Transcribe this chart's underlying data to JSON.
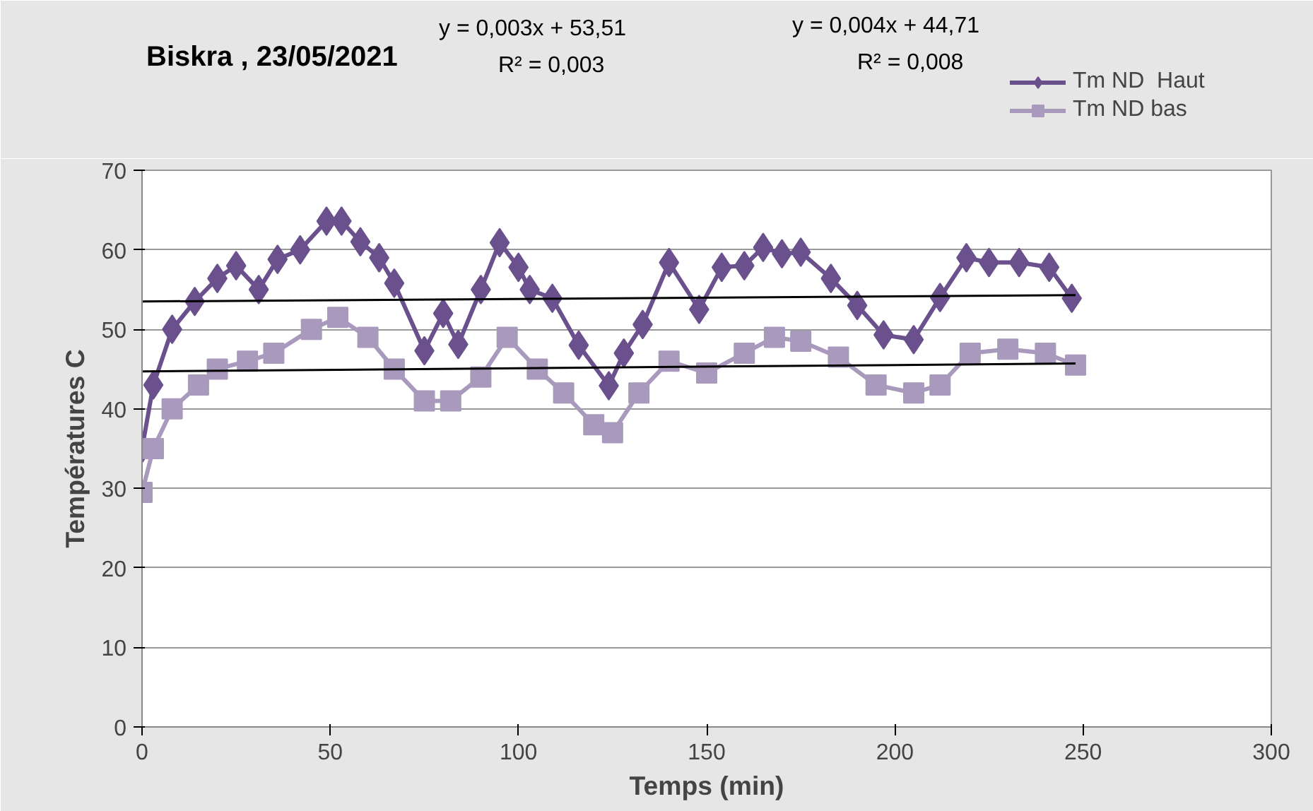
{
  "chart_data": {
    "type": "line",
    "title": "Biskra , 23/05/2021",
    "xlabel": "Temps (min)",
    "ylabel": "Températures C",
    "annotations": [
      "y = 0,003x + 53,51",
      "R² = 0,003",
      "y = 0,004x + 44,71",
      "R² = 0,008"
    ],
    "series": [
      {
        "name": "Tm ND  Haut",
        "color": "#6a508c",
        "marker": "diamond",
        "x": [
          0,
          3,
          8,
          14,
          20,
          25,
          31,
          36,
          42,
          49,
          53,
          58,
          63,
          67,
          75,
          80,
          84,
          90,
          95,
          100,
          103,
          109,
          116,
          124,
          128,
          133,
          140,
          148,
          154,
          160,
          165,
          170,
          175,
          183,
          190,
          197,
          205,
          212,
          219,
          225,
          233,
          241,
          247
        ],
        "values": [
          35,
          43,
          50,
          53.5,
          56.4,
          58,
          55,
          58.8,
          60,
          63.6,
          63.6,
          61,
          59,
          55.8,
          47.3,
          52,
          48.1,
          55,
          60.9,
          57.8,
          55,
          53.9,
          48,
          42.9,
          47,
          50.6,
          58.4,
          52.5,
          57.8,
          58,
          60.3,
          59.5,
          59.7,
          56.4,
          53,
          49.3,
          48.7,
          54,
          59,
          58.4,
          58.4,
          57.8,
          53.9
        ]
      },
      {
        "name": "Tm ND bas",
        "color": "#a899bd",
        "marker": "square",
        "x": [
          0,
          3,
          8,
          15,
          20,
          28,
          35,
          45,
          52,
          60,
          67,
          75,
          82,
          90,
          97,
          105,
          112,
          120,
          125,
          132,
          140,
          150,
          160,
          168,
          175,
          185,
          195,
          205,
          212,
          220,
          230,
          240,
          248
        ],
        "values": [
          29.5,
          35,
          40,
          43,
          45,
          46,
          47,
          50,
          51.5,
          49,
          45,
          41,
          41,
          44,
          49,
          45,
          42,
          38,
          37,
          42,
          46,
          44.5,
          47,
          49,
          48.5,
          46.5,
          43,
          42,
          43,
          47,
          47.5,
          47,
          45.5
        ]
      },
      {
        "color": "#000000",
        "marker": "none",
        "x": [
          0,
          248
        ],
        "values": [
          53.5,
          54.3
        ]
      },
      {
        "color": "#000000",
        "marker": "none",
        "x": [
          0,
          248
        ],
        "values": [
          44.7,
          45.7
        ]
      }
    ],
    "xlim": [
      0,
      300
    ],
    "xticks": [
      0,
      50,
      100,
      150,
      200,
      250,
      300
    ],
    "ylim": [
      0,
      70
    ],
    "yticks": [
      0,
      10,
      20,
      30,
      40,
      50,
      60,
      70
    ],
    "grid": "y",
    "legend": "top right"
  }
}
